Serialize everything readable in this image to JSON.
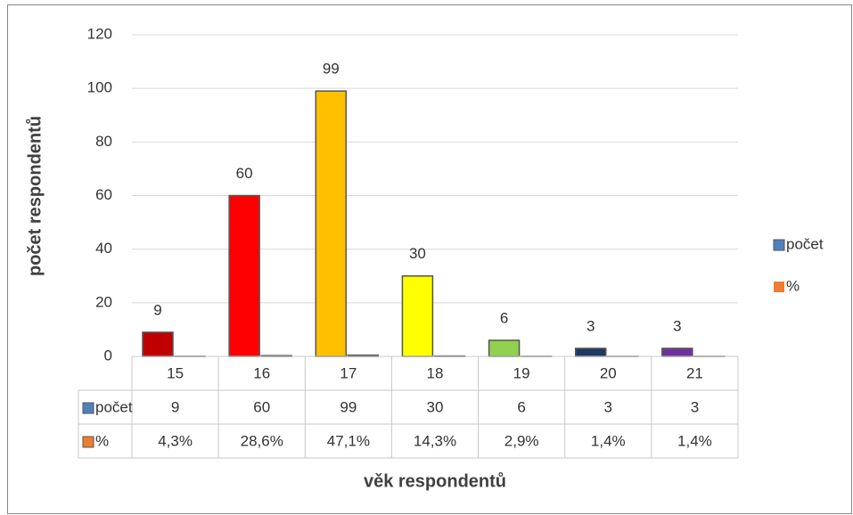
{
  "chart_data": {
    "type": "bar",
    "xlabel": "věk respondentů",
    "ylabel": "počet respondentů",
    "categories": [
      "15",
      "16",
      "17",
      "18",
      "19",
      "20",
      "21"
    ],
    "series": [
      {
        "name": "počet",
        "color": "#4f81bd",
        "colors": [
          "#c00000",
          "#ff0000",
          "#ffc000",
          "#ffff00",
          "#92d050",
          "#1f3864",
          "#7030a0"
        ],
        "values": [
          9,
          60,
          99,
          30,
          6,
          3,
          3
        ]
      },
      {
        "name": "%",
        "color": "#ed7d31",
        "values": [
          0.043,
          0.286,
          0.471,
          0.143,
          0.029,
          0.014,
          0.014
        ],
        "value_labels": [
          "4,3%",
          "28,6%",
          "47,1%",
          "14,3%",
          "2,9%",
          "1,4%",
          "1,4%"
        ]
      }
    ],
    "ylim": [
      0,
      120
    ],
    "yticks": [
      0,
      20,
      40,
      60,
      80,
      100,
      120
    ],
    "grid": true,
    "legend": "right",
    "data_table": true
  }
}
